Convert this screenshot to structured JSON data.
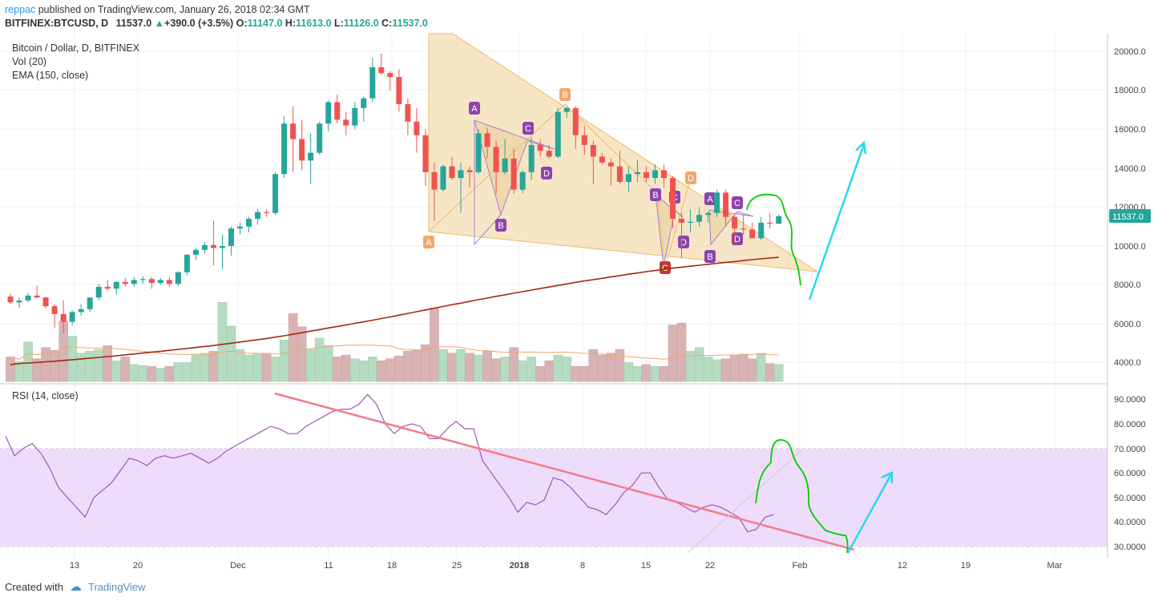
{
  "header": {
    "user": "reppac",
    "published": "published on TradingView.com, January 26, 2018 02:34 GMT",
    "symbol": "BITFINEX:BTCUSD, D",
    "last": "11537.0",
    "change": "+390.0 (+3.5%)",
    "o_label": "O:",
    "o": "11147.0",
    "h_label": "H:",
    "h": "11613.0",
    "l_label": "L:",
    "l": "11126.0",
    "c_label": "C:",
    "c": "11537.0"
  },
  "legend": {
    "title": "Bitcoin / Dollar, D, BITFINEX",
    "vol": "Vol (20)",
    "ema": "EMA (150, close)",
    "rsi": "RSI (14, close)"
  },
  "colors": {
    "up": "#26a69a",
    "down": "#ef5350",
    "ema": "#a52714",
    "rsi": "#9b59b6",
    "rsi_band": "#e9d5fb",
    "triangle_fill": "#f2d9a8",
    "trend": "#f47a8a",
    "green_sketch": "#00cc00",
    "cyan_arrow": "#27d8f0"
  },
  "chart_data": [
    {
      "type": "candlestick",
      "title": "Bitcoin / Dollar, D, BITFINEX",
      "x_ticks": [
        "13",
        "20",
        "Dec",
        "11",
        "18",
        "25",
        "2018",
        "8",
        "15",
        "22",
        "Feb",
        "12",
        "19",
        "Mar"
      ],
      "y_ticks": [
        "20000.0",
        "18000.0",
        "16000.0",
        "14000.0",
        "12000.0",
        "10000.0",
        "8000.0",
        "6000.0",
        "4000.0"
      ],
      "ylim": [
        3000,
        21000
      ],
      "last_price_label": "11537.0",
      "ohlc": [
        [
          7400,
          7550,
          7000,
          7100
        ],
        [
          7100,
          7350,
          6800,
          7200
        ],
        [
          7200,
          7600,
          7100,
          7450
        ],
        [
          7450,
          7950,
          7300,
          7350
        ],
        [
          7350,
          7400,
          6800,
          6900
        ],
        [
          6900,
          7000,
          5800,
          6500
        ],
        [
          6500,
          7200,
          5500,
          6100
        ],
        [
          6100,
          6700,
          5900,
          6600
        ],
        [
          6600,
          7000,
          6400,
          6750
        ],
        [
          6750,
          7300,
          6600,
          7350
        ],
        [
          7350,
          8050,
          7200,
          7900
        ],
        [
          7900,
          8250,
          7700,
          7800
        ],
        [
          7800,
          8200,
          7500,
          8150
        ],
        [
          8150,
          8350,
          7900,
          8050
        ],
        [
          8050,
          8400,
          7900,
          8250
        ],
        [
          8250,
          8450,
          8050,
          8300
        ],
        [
          8300,
          8400,
          7800,
          8100
        ],
        [
          8100,
          8350,
          8000,
          8250
        ],
        [
          8250,
          8400,
          7900,
          8050
        ],
        [
          8050,
          8700,
          7950,
          8650
        ],
        [
          8650,
          9600,
          8500,
          9550
        ],
        [
          9550,
          9900,
          9300,
          9800
        ],
        [
          9800,
          10200,
          9600,
          10050
        ],
        [
          10050,
          11300,
          9000,
          9900
        ],
        [
          9900,
          10600,
          8800,
          10000
        ],
        [
          10000,
          11000,
          9500,
          10900
        ],
        [
          10900,
          11200,
          10600,
          11000
        ],
        [
          11000,
          11500,
          10700,
          11400
        ],
        [
          11400,
          11900,
          11100,
          11750
        ],
        [
          11750,
          11900,
          11500,
          11700
        ],
        [
          11700,
          13800,
          11600,
          13700
        ],
        [
          13700,
          16700,
          13500,
          16300
        ],
        [
          16300,
          17200,
          13800,
          15500
        ],
        [
          15500,
          16500,
          13900,
          14400
        ],
        [
          14400,
          15800,
          13200,
          14800
        ],
        [
          14800,
          16400,
          14700,
          16300
        ],
        [
          16300,
          17500,
          15900,
          17400
        ],
        [
          17400,
          17800,
          16300,
          16500
        ],
        [
          16500,
          16900,
          15700,
          16200
        ],
        [
          16200,
          17400,
          16000,
          17100
        ],
        [
          17100,
          17700,
          16400,
          17600
        ],
        [
          17600,
          19700,
          17400,
          19200
        ],
        [
          19200,
          19900,
          18800,
          18900
        ],
        [
          18900,
          19000,
          18000,
          18700
        ],
        [
          18700,
          19100,
          16900,
          17300
        ],
        [
          17300,
          17600,
          15700,
          16400
        ],
        [
          16400,
          17100,
          14800,
          15700
        ],
        [
          15700,
          16000,
          13100,
          13800
        ],
        [
          13800,
          14300,
          11300,
          12900
        ],
        [
          12900,
          14200,
          12800,
          14100
        ],
        [
          14100,
          14600,
          13400,
          13500
        ],
        [
          13500,
          14300,
          11700,
          13900
        ],
        [
          13900,
          14100,
          13000,
          13800
        ],
        [
          13800,
          16000,
          13700,
          15800
        ],
        [
          15800,
          16100,
          14500,
          15100
        ],
        [
          15100,
          15400,
          12700,
          13800
        ],
        [
          13800,
          15500,
          13700,
          14500
        ],
        [
          14500,
          15000,
          12700,
          12900
        ],
        [
          12900,
          13900,
          12700,
          13800
        ],
        [
          13800,
          15600,
          13400,
          15200
        ],
        [
          15200,
          15500,
          14600,
          14900
        ],
        [
          14900,
          15200,
          14500,
          14600
        ],
        [
          14600,
          17100,
          14500,
          16900
        ],
        [
          16900,
          17200,
          16600,
          17100
        ],
        [
          17100,
          17200,
          15000,
          15700
        ],
        [
          15700,
          16200,
          14700,
          15200
        ],
        [
          15200,
          15400,
          13200,
          14600
        ],
        [
          14600,
          14800,
          14200,
          14300
        ],
        [
          14300,
          14500,
          13100,
          14100
        ],
        [
          14100,
          14900,
          13200,
          13300
        ],
        [
          13300,
          14100,
          12800,
          13700
        ],
        [
          13700,
          14400,
          13300,
          13800
        ],
        [
          13800,
          14100,
          13300,
          13500
        ],
        [
          13500,
          14200,
          13200,
          13900
        ],
        [
          13900,
          14200,
          13000,
          13500
        ],
        [
          13500,
          13600,
          10900,
          11400
        ],
        [
          11400,
          11700,
          9400,
          11200
        ],
        [
          11200,
          11900,
          10700,
          11250
        ],
        [
          11250,
          12000,
          11000,
          11600
        ],
        [
          11600,
          11800,
          11200,
          11700
        ],
        [
          11700,
          12900,
          11500,
          12750
        ],
        [
          12750,
          12900,
          11000,
          11500
        ],
        [
          11500,
          11600,
          10100,
          10900
        ],
        [
          10900,
          11600,
          10600,
          10850
        ],
        [
          10850,
          11200,
          10500,
          10400
        ],
        [
          10400,
          11500,
          10300,
          11200
        ],
        [
          11200,
          11700,
          10900,
          11150
        ],
        [
          11147,
          11613,
          11126,
          11537
        ]
      ],
      "volume": [
        4300,
        4050,
        5100,
        4200,
        4800,
        4650,
        6200,
        5400,
        4500,
        4600,
        4700,
        4900,
        4100,
        4300,
        3900,
        3850,
        3800,
        3700,
        3800,
        4000,
        4000,
        4400,
        4500,
        4600,
        7200,
        5950,
        4700,
        4400,
        4500,
        4500,
        4300,
        5200,
        6600,
        5900,
        4700,
        5300,
        4900,
        4300,
        4400,
        4200,
        4100,
        4300,
        4100,
        4200,
        4350,
        4600,
        4650,
        4950,
        6900,
        4700,
        4500,
        4700,
        4500,
        4400,
        4600,
        4200,
        4300,
        4800,
        4100,
        4300,
        3800,
        4100,
        4400,
        4300,
        3800,
        3800,
        4700,
        4400,
        4500,
        4700,
        4000,
        3800,
        3900,
        3800,
        3800,
        6000,
        6100,
        4600,
        4800,
        4300,
        4150,
        4200,
        4400,
        4450,
        4200,
        4500,
        3950,
        3900
      ],
      "ema150": [
        3900,
        3950,
        3980,
        4010,
        4040,
        4070,
        4110,
        4150,
        4190,
        4230,
        4270,
        4310,
        4350,
        4400,
        4440,
        4490,
        4540,
        4580,
        4630,
        4680,
        4730,
        4780,
        4830,
        4880,
        4940,
        5000,
        5060,
        5120,
        5180,
        5240,
        5310,
        5380,
        5460,
        5540,
        5620,
        5700,
        5780,
        5860,
        5940,
        6020,
        6100,
        6180,
        6270,
        6350,
        6440,
        6530,
        6620,
        6710,
        6800,
        6890,
        6980,
        7060,
        7150,
        7240,
        7320,
        7410,
        7490,
        7570,
        7650,
        7730,
        7810,
        7890,
        7970,
        8050,
        8130,
        8200,
        8270,
        8340,
        8410,
        8480,
        8550,
        8610,
        8680,
        8740,
        8800,
        8860,
        8910,
        8960,
        9010,
        9060,
        9110,
        9160,
        9200,
        9250,
        9300,
        9340,
        9380,
        9420
      ],
      "annotations": [
        "A",
        "B",
        "D",
        "A",
        "B",
        "C",
        "D",
        "A",
        "C",
        "D",
        "B",
        "C",
        "D",
        "A",
        "B",
        "C",
        "D"
      ]
    },
    {
      "type": "line",
      "title": "RSI (14, close)",
      "y_ticks": [
        "90.0000",
        "80.0000",
        "70.0000",
        "60.0000",
        "50.0000",
        "40.0000",
        "30.0000"
      ],
      "ylim": [
        25,
        95
      ],
      "band": [
        30,
        70
      ],
      "values": [
        75,
        67,
        70,
        72,
        68,
        62,
        54,
        50,
        46,
        42,
        50,
        53,
        56,
        61,
        66,
        65,
        63,
        66,
        67,
        66,
        67,
        68,
        66,
        64,
        66,
        69,
        71,
        73,
        75,
        77,
        79,
        78,
        76,
        76,
        79,
        81,
        83,
        85,
        86,
        86,
        88,
        92,
        88,
        80,
        76,
        79,
        80,
        79,
        74,
        74,
        78,
        81,
        78,
        78,
        65,
        60,
        55,
        50,
        44,
        48,
        47,
        49,
        58,
        57,
        54,
        50,
        46,
        45,
        43,
        47,
        52,
        55,
        60,
        60,
        54,
        49,
        48,
        46,
        44,
        46,
        47,
        46,
        44,
        42,
        36,
        37,
        42,
        43
      ]
    }
  ],
  "footer": {
    "created": "Created with",
    "brand": "TradingView"
  }
}
